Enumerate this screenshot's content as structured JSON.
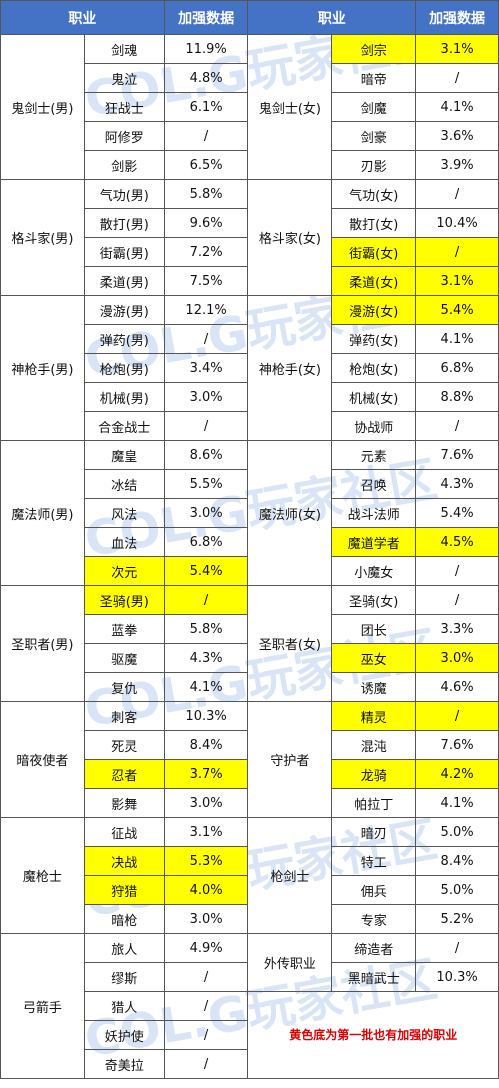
{
  "header": {
    "col_class": "职业",
    "col_data": "加强数据"
  },
  "left": [
    {
      "group": "鬼剑士(男)",
      "rows": [
        {
          "name": "剑魂",
          "value": "11.9%",
          "hl": false
        },
        {
          "name": "鬼泣",
          "value": "4.8%",
          "hl": false
        },
        {
          "name": "狂战士",
          "value": "6.1%",
          "hl": false
        },
        {
          "name": "阿修罗",
          "value": "/",
          "hl": false
        },
        {
          "name": "剑影",
          "value": "6.5%",
          "hl": false
        }
      ]
    },
    {
      "group": "格斗家(男)",
      "rows": [
        {
          "name": "气功(男)",
          "value": "5.8%",
          "hl": false
        },
        {
          "name": "散打(男)",
          "value": "9.6%",
          "hl": false
        },
        {
          "name": "街霸(男)",
          "value": "7.2%",
          "hl": false
        },
        {
          "name": "柔道(男)",
          "value": "7.5%",
          "hl": false
        }
      ]
    },
    {
      "group": "神枪手(男)",
      "rows": [
        {
          "name": "漫游(男)",
          "value": "12.1%",
          "hl": false
        },
        {
          "name": "弹药(男)",
          "value": "/",
          "hl": false
        },
        {
          "name": "枪炮(男)",
          "value": "3.4%",
          "hl": false
        },
        {
          "name": "机械(男)",
          "value": "3.0%",
          "hl": false
        },
        {
          "name": "合金战士",
          "value": "/",
          "hl": false
        }
      ]
    },
    {
      "group": "魔法师(男)",
      "rows": [
        {
          "name": "魔皇",
          "value": "8.6%",
          "hl": false
        },
        {
          "name": "冰结",
          "value": "5.5%",
          "hl": false
        },
        {
          "name": "风法",
          "value": "3.0%",
          "hl": false
        },
        {
          "name": "血法",
          "value": "6.8%",
          "hl": false
        },
        {
          "name": "次元",
          "value": "5.4%",
          "hl": true
        }
      ]
    },
    {
      "group": "圣职者(男)",
      "rows": [
        {
          "name": "圣骑(男)",
          "value": "/",
          "hl": true
        },
        {
          "name": "蓝拳",
          "value": "5.8%",
          "hl": false
        },
        {
          "name": "驱魔",
          "value": "4.3%",
          "hl": false
        },
        {
          "name": "复仇",
          "value": "4.1%",
          "hl": false
        }
      ]
    },
    {
      "group": "暗夜使者",
      "rows": [
        {
          "name": "刺客",
          "value": "10.3%",
          "hl": false
        },
        {
          "name": "死灵",
          "value": "8.4%",
          "hl": false
        },
        {
          "name": "忍者",
          "value": "3.7%",
          "hl": true
        },
        {
          "name": "影舞",
          "value": "3.0%",
          "hl": false
        }
      ]
    },
    {
      "group": "魔枪士",
      "rows": [
        {
          "name": "征战",
          "value": "3.1%",
          "hl": false
        },
        {
          "name": "决战",
          "value": "5.3%",
          "hl": true
        },
        {
          "name": "狩猎",
          "value": "4.0%",
          "hl": true
        },
        {
          "name": "暗枪",
          "value": "3.0%",
          "hl": false
        }
      ]
    },
    {
      "group": "弓箭手",
      "rows": [
        {
          "name": "旅人",
          "value": "4.9%",
          "hl": false
        },
        {
          "name": "缪斯",
          "value": "/",
          "hl": false
        },
        {
          "name": "猎人",
          "value": "/",
          "hl": false
        },
        {
          "name": "妖护使",
          "value": "/",
          "hl": false
        },
        {
          "name": "奇美拉",
          "value": "/",
          "hl": false
        }
      ]
    }
  ],
  "right": [
    {
      "group": "鬼剑士(女)",
      "rows": [
        {
          "name": "剑宗",
          "value": "3.1%",
          "hl": true
        },
        {
          "name": "暗帝",
          "value": "/",
          "hl": false
        },
        {
          "name": "剑魔",
          "value": "4.1%",
          "hl": false
        },
        {
          "name": "剑豪",
          "value": "3.6%",
          "hl": false
        },
        {
          "name": "刃影",
          "value": "3.9%",
          "hl": false
        }
      ]
    },
    {
      "group": "格斗家(女)",
      "rows": [
        {
          "name": "气功(女)",
          "value": "/",
          "hl": false
        },
        {
          "name": "散打(女)",
          "value": "10.4%",
          "hl": false
        },
        {
          "name": "街霸(女)",
          "value": "/",
          "hl": true
        },
        {
          "name": "柔道(女)",
          "value": "3.1%",
          "hl": true
        }
      ]
    },
    {
      "group": "神枪手(女)",
      "rows": [
        {
          "name": "漫游(女)",
          "value": "5.4%",
          "hl": true
        },
        {
          "name": "弹药(女)",
          "value": "4.1%",
          "hl": false
        },
        {
          "name": "枪炮(女)",
          "value": "6.8%",
          "hl": false
        },
        {
          "name": "机械(女)",
          "value": "8.8%",
          "hl": false
        },
        {
          "name": "协战师",
          "value": "/",
          "hl": false
        }
      ]
    },
    {
      "group": "魔法师(女)",
      "rows": [
        {
          "name": "元素",
          "value": "7.6%",
          "hl": false
        },
        {
          "name": "召唤",
          "value": "4.3%",
          "hl": false
        },
        {
          "name": "战斗法师",
          "value": "5.4%",
          "hl": false
        },
        {
          "name": "魔道学者",
          "value": "4.5%",
          "hl": true
        },
        {
          "name": "小魔女",
          "value": "/",
          "hl": false
        }
      ]
    },
    {
      "group": "圣职者(女)",
      "rows": [
        {
          "name": "圣骑(女)",
          "value": "/",
          "hl": false
        },
        {
          "name": "团长",
          "value": "3.3%",
          "hl": false
        },
        {
          "name": "巫女",
          "value": "3.0%",
          "hl": true
        },
        {
          "name": "诱魔",
          "value": "4.6%",
          "hl": false
        }
      ]
    },
    {
      "group": "守护者",
      "rows": [
        {
          "name": "精灵",
          "value": "/",
          "hl": true
        },
        {
          "name": "混沌",
          "value": "7.6%",
          "hl": false
        },
        {
          "name": "龙骑",
          "value": "4.2%",
          "hl": true
        },
        {
          "name": "帕拉丁",
          "value": "4.1%",
          "hl": false
        }
      ]
    },
    {
      "group": "枪剑士",
      "rows": [
        {
          "name": "暗刃",
          "value": "5.0%",
          "hl": false
        },
        {
          "name": "特工",
          "value": "8.4%",
          "hl": false
        },
        {
          "name": "佣兵",
          "value": "5.0%",
          "hl": false
        },
        {
          "name": "专家",
          "value": "5.2%",
          "hl": false
        }
      ]
    },
    {
      "group": "外传职业",
      "rows": [
        {
          "name": "缔造者",
          "value": "/",
          "hl": false
        },
        {
          "name": "黑暗武士",
          "value": "10.3%",
          "hl": false
        }
      ]
    }
  ],
  "note": "黄色底为第一批也有加强的职业",
  "watermark": "COL.G玩家社区",
  "colors": {
    "header": "#4472c4",
    "highlight": "#ffff00",
    "note": "#e00000",
    "border": "#555555"
  }
}
